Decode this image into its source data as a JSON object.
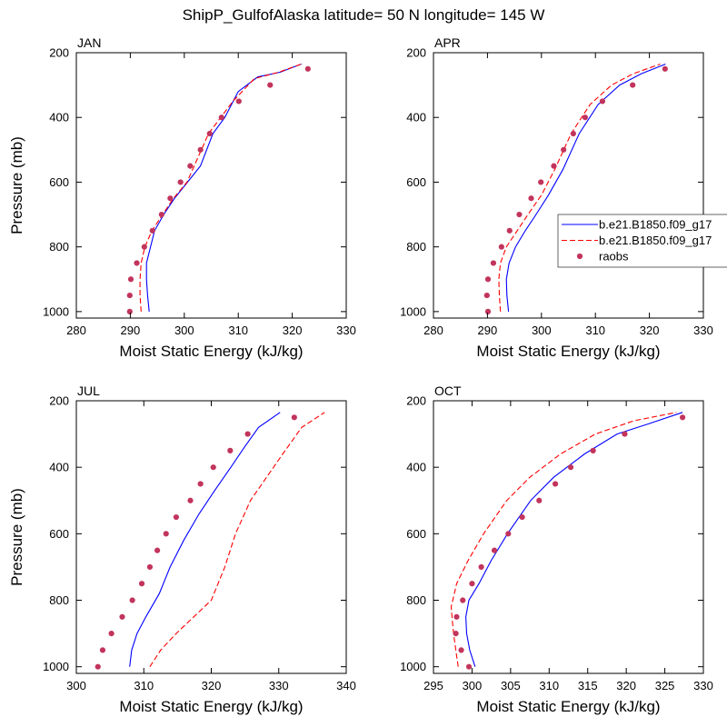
{
  "figure": {
    "title": "ShipP_GulfofAlaska  latitude= 50 N longitude= 145 W"
  },
  "legend": {
    "placement": "right of APR panel",
    "entries": [
      {
        "label": "b.e21.B1850.f09_g17",
        "style": "solid",
        "color": "#0000ff"
      },
      {
        "label": "b.e21.B1850.f09_g17",
        "style": "dashed",
        "color": "#ff0000"
      },
      {
        "label": "raobs",
        "style": "marker",
        "color": "#c2345c"
      }
    ]
  },
  "chart_data": [
    {
      "type": "line",
      "title": "JAN",
      "xlabel": "Moist Static Energy (kJ/kg)",
      "ylabel": "Pressure (mb)",
      "xlim": [
        280,
        330
      ],
      "ylim": [
        1020,
        200
      ],
      "xticks": [
        280,
        290,
        300,
        310,
        320,
        330
      ],
      "yticks": [
        200,
        400,
        600,
        800,
        1000
      ],
      "series": [
        {
          "name": "b.e21.B1850.f09_g17",
          "style": "solid",
          "color": "#0000ff",
          "x": [
            293.5,
            293.2,
            293.0,
            293.0,
            294.5,
            296.2,
            298.2,
            300.6,
            303.0,
            305.3,
            307.5,
            310.0,
            313.6,
            317.8,
            321.7
          ],
          "y": [
            1000,
            950,
            900,
            850,
            750,
            700,
            650,
            600,
            550,
            450,
            400,
            320,
            275,
            260,
            235
          ]
        },
        {
          "name": "b.e21.B1850.f09_g17",
          "style": "dashed",
          "color": "#ff0000",
          "x": [
            292.0,
            291.8,
            291.8,
            292.0,
            292.7,
            294.0,
            296.0,
            298.0,
            300.5,
            304.5,
            309.0,
            313.0,
            317.5,
            321.7
          ],
          "y": [
            1000,
            950,
            900,
            850,
            800,
            750,
            700,
            650,
            600,
            450,
            350,
            280,
            260,
            235
          ]
        },
        {
          "name": "raobs",
          "style": "marker",
          "color": "#c2345c",
          "x": [
            289.9,
            289.9,
            290.1,
            291.2,
            292.6,
            294.1,
            295.8,
            297.4,
            299.3,
            301.1,
            303.0,
            304.7,
            306.9,
            310.1,
            315.9,
            322.9
          ],
          "y": [
            1000,
            950,
            900,
            850,
            800,
            750,
            700,
            650,
            600,
            550,
            500,
            450,
            400,
            350,
            300,
            250
          ]
        }
      ]
    },
    {
      "type": "line",
      "title": "APR",
      "xlabel": "Moist Static Energy (kJ/kg)",
      "ylabel": "",
      "xlim": [
        280,
        330
      ],
      "ylim": [
        1020,
        200
      ],
      "xticks": [
        280,
        290,
        300,
        310,
        320,
        330
      ],
      "yticks": [
        200,
        400,
        600,
        800,
        1000
      ],
      "series": [
        {
          "name": "b.e21.B1850.f09_g17",
          "style": "solid",
          "color": "#0000ff",
          "x": [
            293.9,
            293.6,
            293.5,
            294.0,
            295.2,
            297.0,
            299.0,
            301.3,
            304.0,
            307.0,
            310.5,
            314.5,
            318.5,
            323.0
          ],
          "y": [
            1000,
            950,
            900,
            850,
            800,
            750,
            700,
            640,
            560,
            450,
            360,
            300,
            265,
            235
          ]
        },
        {
          "name": "b.e21.B1850.f09_g17",
          "style": "dashed",
          "color": "#ff0000",
          "x": [
            292.4,
            292.2,
            292.1,
            292.4,
            293.5,
            295.5,
            297.5,
            300.0,
            302.5,
            305.5,
            309.0,
            313.0,
            317.0,
            322.0
          ],
          "y": [
            1000,
            950,
            900,
            850,
            800,
            750,
            700,
            640,
            560,
            450,
            360,
            300,
            265,
            235
          ]
        },
        {
          "name": "raobs",
          "style": "marker",
          "color": "#c2345c",
          "x": [
            290.1,
            289.9,
            290.1,
            291.1,
            292.6,
            294.1,
            295.9,
            298.1,
            299.9,
            302.3,
            304.1,
            305.9,
            308.1,
            311.3,
            316.9,
            322.9
          ],
          "y": [
            1000,
            950,
            900,
            850,
            800,
            750,
            700,
            650,
            600,
            550,
            500,
            450,
            400,
            350,
            300,
            250
          ]
        }
      ]
    },
    {
      "type": "line",
      "title": "JUL",
      "xlabel": "Moist Static Energy (kJ/kg)",
      "ylabel": "Pressure (mb)",
      "xlim": [
        300,
        340
      ],
      "ylim": [
        1020,
        200
      ],
      "xticks": [
        300,
        310,
        320,
        330,
        340
      ],
      "yticks": [
        200,
        400,
        600,
        800,
        1000
      ],
      "series": [
        {
          "name": "b.e21.B1850.f09_g17",
          "style": "solid",
          "color": "#0000ff",
          "x": [
            307.9,
            308.2,
            309.0,
            310.3,
            312.3,
            313.9,
            315.9,
            318.2,
            320.5,
            322.9,
            324.9,
            327.0,
            330.2
          ],
          "y": [
            1000,
            950,
            900,
            850,
            780,
            700,
            620,
            540,
            470,
            400,
            340,
            280,
            235
          ]
        },
        {
          "name": "b.e21.B1850.f09_g17",
          "style": "dashed",
          "color": "#ff0000",
          "x": [
            310.9,
            312.5,
            314.8,
            317.4,
            320.0,
            322.0,
            323.6,
            325.8,
            328.2,
            330.6,
            333.4,
            336.8
          ],
          "y": [
            1000,
            950,
            900,
            850,
            800,
            700,
            600,
            500,
            430,
            360,
            280,
            235
          ]
        },
        {
          "name": "raobs",
          "style": "marker",
          "color": "#c2345c",
          "x": [
            303.2,
            303.9,
            305.2,
            306.8,
            308.3,
            309.7,
            310.9,
            312.0,
            313.3,
            314.8,
            316.9,
            318.4,
            320.3,
            322.8,
            325.4,
            332.3
          ],
          "y": [
            1000,
            950,
            900,
            850,
            800,
            750,
            700,
            650,
            600,
            550,
            500,
            450,
            400,
            350,
            300,
            250
          ]
        }
      ]
    },
    {
      "type": "line",
      "title": "OCT",
      "xlabel": "Moist Static Energy (kJ/kg)",
      "ylabel": "",
      "xlim": [
        295,
        330
      ],
      "ylim": [
        1020,
        200
      ],
      "xticks": [
        295,
        300,
        305,
        310,
        315,
        320,
        325,
        330
      ],
      "yticks": [
        200,
        400,
        600,
        800,
        1000
      ],
      "series": [
        {
          "name": "b.e21.B1850.f09_g17",
          "style": "solid",
          "color": "#0000ff",
          "x": [
            300.4,
            299.7,
            299.3,
            299.2,
            299.6,
            300.9,
            302.5,
            304.6,
            307.6,
            310.6,
            314.6,
            318.8,
            322.8,
            327.3
          ],
          "y": [
            1000,
            950,
            900,
            850,
            800,
            750,
            680,
            600,
            500,
            430,
            360,
            300,
            270,
            235
          ]
        },
        {
          "name": "b.e21.B1850.f09_g17",
          "style": "dashed",
          "color": "#ff0000",
          "x": [
            298.2,
            297.9,
            297.6,
            297.4,
            297.3,
            298.0,
            299.5,
            301.5,
            304.5,
            307.5,
            311.5,
            316.0,
            321.0,
            326.5
          ],
          "y": [
            1000,
            950,
            900,
            850,
            820,
            750,
            680,
            600,
            500,
            430,
            360,
            300,
            260,
            235
          ]
        },
        {
          "name": "raobs",
          "style": "marker",
          "color": "#c2345c",
          "x": [
            299.6,
            298.6,
            297.9,
            298.0,
            298.8,
            300.0,
            301.2,
            302.9,
            304.7,
            306.5,
            308.7,
            310.8,
            312.8,
            315.7,
            319.8,
            327.3
          ],
          "y": [
            1000,
            950,
            900,
            850,
            800,
            750,
            700,
            650,
            600,
            550,
            500,
            450,
            400,
            350,
            300,
            250
          ]
        }
      ]
    }
  ]
}
